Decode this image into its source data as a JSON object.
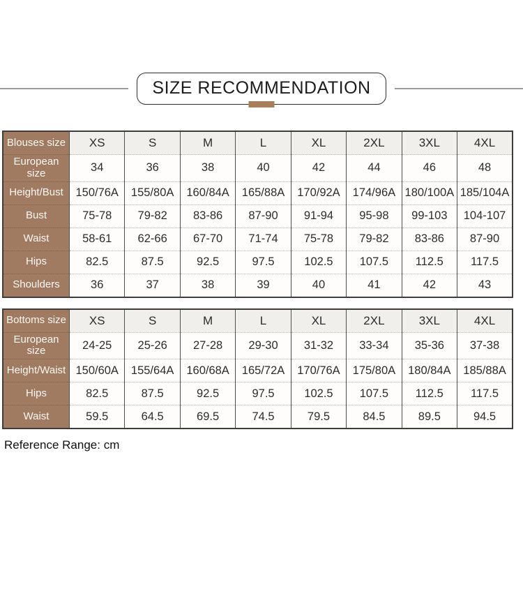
{
  "title": "SIZE RECOMMENDATION",
  "footer_note": "Reference Range: cm",
  "colors": {
    "label_column_brown": "#a07b61",
    "accent_bar_brown": "#a87e5a",
    "size_header_row_bg": "#f1efec",
    "cell_bg": "#fefdfb",
    "table_border": "#3d3d3d",
    "column_separator": "#4e4e4e",
    "row_separator_dotted": "#b6b2ac",
    "side_rule": "#9c9c9c"
  },
  "tables": [
    {
      "name": "blouses-size-table",
      "rows": [
        {
          "label": "Blouses size",
          "values": [
            "XS",
            "S",
            "M",
            "L",
            "XL",
            "2XL",
            "3XL",
            "4XL"
          ]
        },
        {
          "label": "European size",
          "values": [
            "34",
            "36",
            "38",
            "40",
            "42",
            "44",
            "46",
            "48"
          ]
        },
        {
          "label": "Height/Bust",
          "values": [
            "150/76A",
            "155/80A",
            "160/84A",
            "165/88A",
            "170/92A",
            "174/96A",
            "180/100A",
            "185/104A"
          ]
        },
        {
          "label": "Bust",
          "values": [
            "75-78",
            "79-82",
            "83-86",
            "87-90",
            "91-94",
            "95-98",
            "99-103",
            "104-107"
          ]
        },
        {
          "label": "Waist",
          "values": [
            "58-61",
            "62-66",
            "67-70",
            "71-74",
            "75-78",
            "79-82",
            "83-86",
            "87-90"
          ]
        },
        {
          "label": "Hips",
          "values": [
            "82.5",
            "87.5",
            "92.5",
            "97.5",
            "102.5",
            "107.5",
            "112.5",
            "117.5"
          ]
        },
        {
          "label": "Shoulders",
          "values": [
            "36",
            "37",
            "38",
            "39",
            "40",
            "41",
            "42",
            "43"
          ]
        }
      ]
    },
    {
      "name": "bottoms-size-table",
      "rows": [
        {
          "label": "Bottoms size",
          "values": [
            "XS",
            "S",
            "M",
            "L",
            "XL",
            "2XL",
            "3XL",
            "4XL"
          ]
        },
        {
          "label": "European size",
          "values": [
            "24-25",
            "25-26",
            "27-28",
            "29-30",
            "31-32",
            "33-34",
            "35-36",
            "37-38"
          ]
        },
        {
          "label": "Height/Waist",
          "values": [
            "150/60A",
            "155/64A",
            "160/68A",
            "165/72A",
            "170/76A",
            "175/80A",
            "180/84A",
            "185/88A"
          ]
        },
        {
          "label": "Hips",
          "values": [
            "82.5",
            "87.5",
            "92.5",
            "97.5",
            "102.5",
            "107.5",
            "112.5",
            "117.5"
          ]
        },
        {
          "label": "Waist",
          "values": [
            "59.5",
            "64.5",
            "69.5",
            "74.5",
            "79.5",
            "84.5",
            "89.5",
            "94.5"
          ]
        }
      ]
    }
  ]
}
